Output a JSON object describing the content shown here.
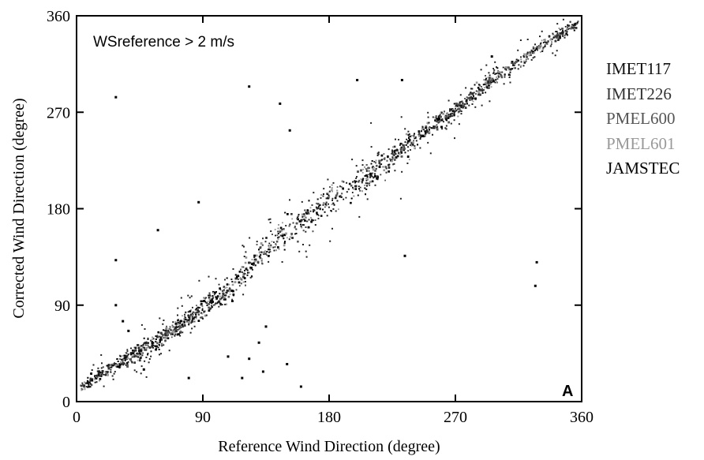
{
  "chart_data": {
    "type": "scatter",
    "title": "",
    "xlabel": "Reference Wind Direction (degree)",
    "ylabel": "Corrected Wind Direction (degree)",
    "xlim": [
      0,
      360
    ],
    "ylim": [
      0,
      360
    ],
    "xticks": [
      0,
      90,
      180,
      270,
      360
    ],
    "yticks": [
      0,
      90,
      180,
      270,
      360
    ],
    "annotation": "WSreference > 2 m/s",
    "panel_label": "A",
    "grid": false,
    "legend_placement": "right-outside",
    "series": [
      {
        "name": "IMET117",
        "color": "#111111"
      },
      {
        "name": "IMET226",
        "color": "#333333"
      },
      {
        "name": "PMEL600",
        "color": "#555555"
      },
      {
        "name": "PMEL601",
        "color": "#999999"
      },
      {
        "name": "JAMSTEC",
        "color": "#000000"
      }
    ],
    "trend": [
      [
        3,
        14
      ],
      [
        30,
        36
      ],
      [
        60,
        58
      ],
      [
        90,
        88
      ],
      [
        110,
        105
      ],
      [
        135,
        142
      ],
      [
        160,
        168
      ],
      [
        180,
        188
      ],
      [
        210,
        212
      ],
      [
        235,
        240
      ],
      [
        270,
        272
      ],
      [
        300,
        305
      ],
      [
        330,
        330
      ],
      [
        360,
        356
      ]
    ],
    "outliers": [
      [
        28,
        284
      ],
      [
        28,
        132
      ],
      [
        58,
        160
      ],
      [
        87,
        186
      ],
      [
        123,
        294
      ],
      [
        145,
        278
      ],
      [
        152,
        253
      ],
      [
        200,
        300
      ],
      [
        232,
        300
      ],
      [
        234,
        136
      ],
      [
        296,
        322
      ],
      [
        328,
        130
      ],
      [
        327,
        108
      ],
      [
        28,
        90
      ],
      [
        33,
        75
      ],
      [
        37,
        66
      ],
      [
        108,
        42
      ],
      [
        118,
        22
      ],
      [
        123,
        40
      ],
      [
        133,
        28
      ],
      [
        135,
        70
      ],
      [
        160,
        14
      ],
      [
        130,
        55
      ],
      [
        150,
        35
      ],
      [
        48,
        30
      ],
      [
        80,
        22
      ]
    ]
  }
}
